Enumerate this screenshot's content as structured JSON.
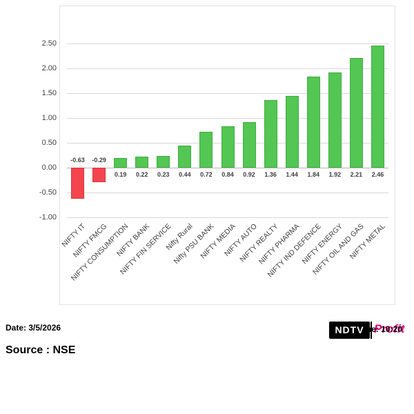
{
  "chart_data": {
    "type": "bar",
    "categories": [
      "NIFTY IT",
      "NIFTY FMCG",
      "NIFTY CONSUMPTION",
      "NIFTY BANK",
      "NIFTY FIN SERVICE",
      "Nifty Rural",
      "Nifty PSU BANK",
      "NIFTY MEDIA",
      "NIFTY AUTO",
      "NIFTY REALTY",
      "NIFTY PHARMA",
      "NIFTY IND DEFENCE",
      "NIFTY ENERGY",
      "NIFTY OIL AND GAS",
      "NIFTY METAL"
    ],
    "values": [
      -0.63,
      -0.29,
      0.19,
      0.22,
      0.23,
      0.44,
      0.72,
      0.84,
      0.92,
      1.36,
      1.44,
      1.84,
      1.92,
      2.21,
      2.46
    ],
    "data_labels": [
      "-0.63",
      "-0.29",
      "0.19",
      "0.22",
      "0.23",
      "0.44",
      "0.72",
      "0.84",
      "0.92",
      "1.36",
      "1.44",
      "1.84",
      "1.92",
      "2.21",
      "2.46"
    ],
    "title": "",
    "xlabel": "",
    "ylabel": "",
    "ylim": [
      -1.0,
      2.5
    ],
    "yticks": [
      "2.50",
      "2.00",
      "1.50",
      "1.00",
      "0.50",
      "0.00",
      "-0.50",
      "-1.00"
    ],
    "grid": true,
    "legend": "none",
    "colors": {
      "positive_bar": "#53c653",
      "negative_bar": "#f4454e",
      "gridline": "#d9d9d9",
      "label_text": "#404040"
    }
  },
  "footer": {
    "date_label": "Date: 3/5/2026",
    "time_label": "Time: 10:20",
    "source_label": "Source : NSE",
    "logo": {
      "ndtv_text": "NDTV",
      "profit_text": "Profit",
      "profit_color": "#e6007e"
    }
  }
}
